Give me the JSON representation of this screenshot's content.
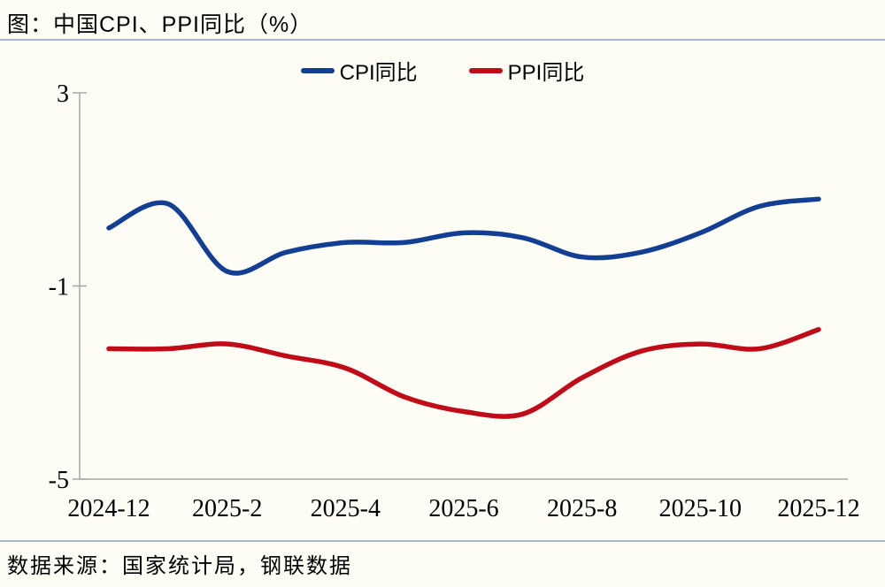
{
  "page": {
    "title": "图：中国CPI、PPI同比（%）",
    "source": "数据来源：国家统计局，钢联数据",
    "background_color": "#FDFCF5",
    "rule_color": "#A5B7D1"
  },
  "legend": [
    {
      "label": "CPI同比",
      "color": "#123F93"
    },
    {
      "label": "PPI同比",
      "color": "#C00C18"
    }
  ],
  "chart_data": {
    "type": "line",
    "title": "图：中国CPI、PPI同比（%）",
    "xlabel": "",
    "ylabel": "",
    "x": [
      "2024-12",
      "2025-1",
      "2025-2",
      "2025-3",
      "2025-4",
      "2025-5",
      "2025-6",
      "2025-7",
      "2025-8",
      "2025-9",
      "2025-10",
      "2025-11",
      "2025-12"
    ],
    "series": [
      {
        "name": "CPI同比",
        "color": "#123F93",
        "values": [
          0.2,
          0.7,
          -0.7,
          -0.3,
          -0.1,
          -0.1,
          0.1,
          0.0,
          -0.4,
          -0.3,
          0.1,
          0.65,
          0.8
        ]
      },
      {
        "name": "PPI同比",
        "color": "#C00C18",
        "values": [
          -2.3,
          -2.3,
          -2.2,
          -2.45,
          -2.7,
          -3.3,
          -3.6,
          -3.65,
          -2.9,
          -2.35,
          -2.2,
          -2.3,
          -1.9
        ]
      }
    ],
    "ylim": [
      -5,
      3
    ],
    "yticks": [
      3,
      -1,
      -5
    ],
    "xtick_labels": [
      "2024-12",
      "2025-2",
      "2025-4",
      "2025-6",
      "2025-8",
      "2025-10",
      "2025-12"
    ],
    "xtick_indices": [
      0,
      2,
      4,
      6,
      8,
      10,
      12
    ],
    "grid": false,
    "legend_position": "top",
    "axis_color": "#A6A6A6",
    "tick_label_color": "#000000",
    "smooth": true
  }
}
